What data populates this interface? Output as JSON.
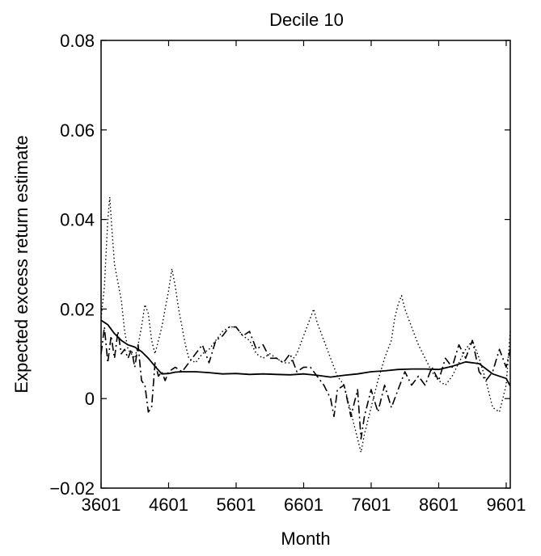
{
  "chart_data": {
    "type": "line",
    "title": "Decile 10",
    "xlabel": "Month",
    "ylabel": "Expected excess return estimate",
    "xlim": [
      3601,
      9661
    ],
    "ylim": [
      -0.02,
      0.08
    ],
    "x_ticks": [
      3601,
      4601,
      5601,
      6601,
      7601,
      8601,
      9601
    ],
    "x_tick_labels": [
      "3601",
      "4601",
      "5601",
      "6601",
      "7601",
      "8601",
      "9601"
    ],
    "y_ticks": [
      -0.02,
      0,
      0.02,
      0.04,
      0.06,
      0.08
    ],
    "y_tick_labels": [
      "−0.02",
      "0",
      "0.02",
      "0.04",
      "0.06",
      "0.08"
    ],
    "grid": false,
    "legend": "none",
    "series": [
      {
        "style": "solid",
        "x": [
          3601,
          3700,
          3800,
          3900,
          4000,
          4100,
          4200,
          4300,
          4400,
          4500,
          4600,
          4700,
          4800,
          5000,
          5200,
          5400,
          5600,
          5800,
          6000,
          6200,
          6400,
          6600,
          6800,
          7000,
          7200,
          7400,
          7600,
          7800,
          8000,
          8200,
          8400,
          8600,
          8800,
          9000,
          9200,
          9400,
          9600,
          9661
        ],
        "values": [
          0.0175,
          0.0165,
          0.0145,
          0.013,
          0.012,
          0.0115,
          0.0105,
          0.009,
          0.0072,
          0.0055,
          0.0056,
          0.0059,
          0.006,
          0.006,
          0.0058,
          0.0055,
          0.0056,
          0.0054,
          0.0055,
          0.0054,
          0.0053,
          0.0055,
          0.0052,
          0.0048,
          0.0052,
          0.0055,
          0.006,
          0.0062,
          0.0065,
          0.0066,
          0.0066,
          0.0065,
          0.0072,
          0.0082,
          0.0078,
          0.0055,
          0.0045,
          0.0028
        ]
      },
      {
        "style": "dashdot",
        "x": [
          3601,
          3650,
          3700,
          3750,
          3800,
          3850,
          3900,
          3950,
          4000,
          4050,
          4100,
          4150,
          4200,
          4250,
          4300,
          4350,
          4400,
          4450,
          4500,
          4550,
          4600,
          4700,
          4800,
          4900,
          5000,
          5100,
          5200,
          5300,
          5400,
          5500,
          5600,
          5700,
          5800,
          5900,
          6000,
          6100,
          6200,
          6300,
          6400,
          6500,
          6600,
          6700,
          6800,
          6900,
          7000,
          7050,
          7100,
          7200,
          7300,
          7400,
          7450,
          7500,
          7600,
          7700,
          7800,
          7900,
          8000,
          8100,
          8200,
          8300,
          8400,
          8500,
          8600,
          8700,
          8800,
          8900,
          9000,
          9100,
          9200,
          9300,
          9400,
          9500,
          9600,
          9661
        ],
        "values": [
          0.01,
          0.016,
          0.008,
          0.014,
          0.009,
          0.015,
          0.01,
          0.011,
          0.009,
          0.011,
          0.007,
          0.012,
          0.004,
          0.003,
          -0.003,
          -0.002,
          0.008,
          0.005,
          0.006,
          0.004,
          0.006,
          0.007,
          0.006,
          0.008,
          0.01,
          0.012,
          0.008,
          0.013,
          0.014,
          0.016,
          0.016,
          0.014,
          0.015,
          0.011,
          0.012,
          0.009,
          0.009,
          0.008,
          0.01,
          0.006,
          0.007,
          0.007,
          0.005,
          0.003,
          0.0,
          -0.004,
          0.002,
          0.003,
          -0.004,
          0.002,
          -0.009,
          -0.004,
          0.002,
          -0.003,
          0.003,
          -0.002,
          0.002,
          0.006,
          0.003,
          0.005,
          0.003,
          0.007,
          0.004,
          0.009,
          0.007,
          0.012,
          0.009,
          0.013,
          0.006,
          0.004,
          0.006,
          0.011,
          0.007,
          0.011
        ]
      },
      {
        "style": "dotted",
        "x": [
          3601,
          3650,
          3700,
          3730,
          3760,
          3800,
          3850,
          3900,
          3950,
          4000,
          4050,
          4100,
          4150,
          4200,
          4250,
          4300,
          4350,
          4400,
          4450,
          4500,
          4550,
          4600,
          4650,
          4700,
          4750,
          4800,
          4850,
          4900,
          5000,
          5100,
          5200,
          5300,
          5400,
          5500,
          5600,
          5700,
          5800,
          5900,
          6000,
          6100,
          6200,
          6300,
          6400,
          6500,
          6600,
          6700,
          6750,
          6800,
          6900,
          7000,
          7100,
          7200,
          7300,
          7400,
          7450,
          7500,
          7600,
          7700,
          7800,
          7900,
          7950,
          8000,
          8050,
          8100,
          8200,
          8300,
          8400,
          8500,
          8600,
          8700,
          8800,
          8900,
          9000,
          9100,
          9200,
          9300,
          9400,
          9500,
          9600,
          9661
        ],
        "values": [
          0.018,
          0.025,
          0.04,
          0.045,
          0.038,
          0.03,
          0.026,
          0.022,
          0.015,
          0.011,
          0.01,
          0.009,
          0.012,
          0.016,
          0.021,
          0.019,
          0.013,
          0.01,
          0.013,
          0.016,
          0.02,
          0.024,
          0.029,
          0.025,
          0.02,
          0.016,
          0.012,
          0.009,
          0.008,
          0.01,
          0.011,
          0.013,
          0.015,
          0.016,
          0.016,
          0.014,
          0.013,
          0.01,
          0.009,
          0.01,
          0.009,
          0.008,
          0.008,
          0.01,
          0.014,
          0.018,
          0.02,
          0.017,
          0.013,
          0.009,
          0.005,
          0.003,
          -0.003,
          -0.009,
          -0.012,
          -0.008,
          -0.002,
          0.004,
          0.009,
          0.013,
          0.018,
          0.021,
          0.023,
          0.02,
          0.016,
          0.012,
          0.009,
          0.006,
          0.004,
          0.003,
          0.005,
          0.008,
          0.011,
          0.013,
          0.009,
          0.004,
          -0.002,
          -0.003,
          0.003,
          0.015
        ]
      }
    ]
  }
}
